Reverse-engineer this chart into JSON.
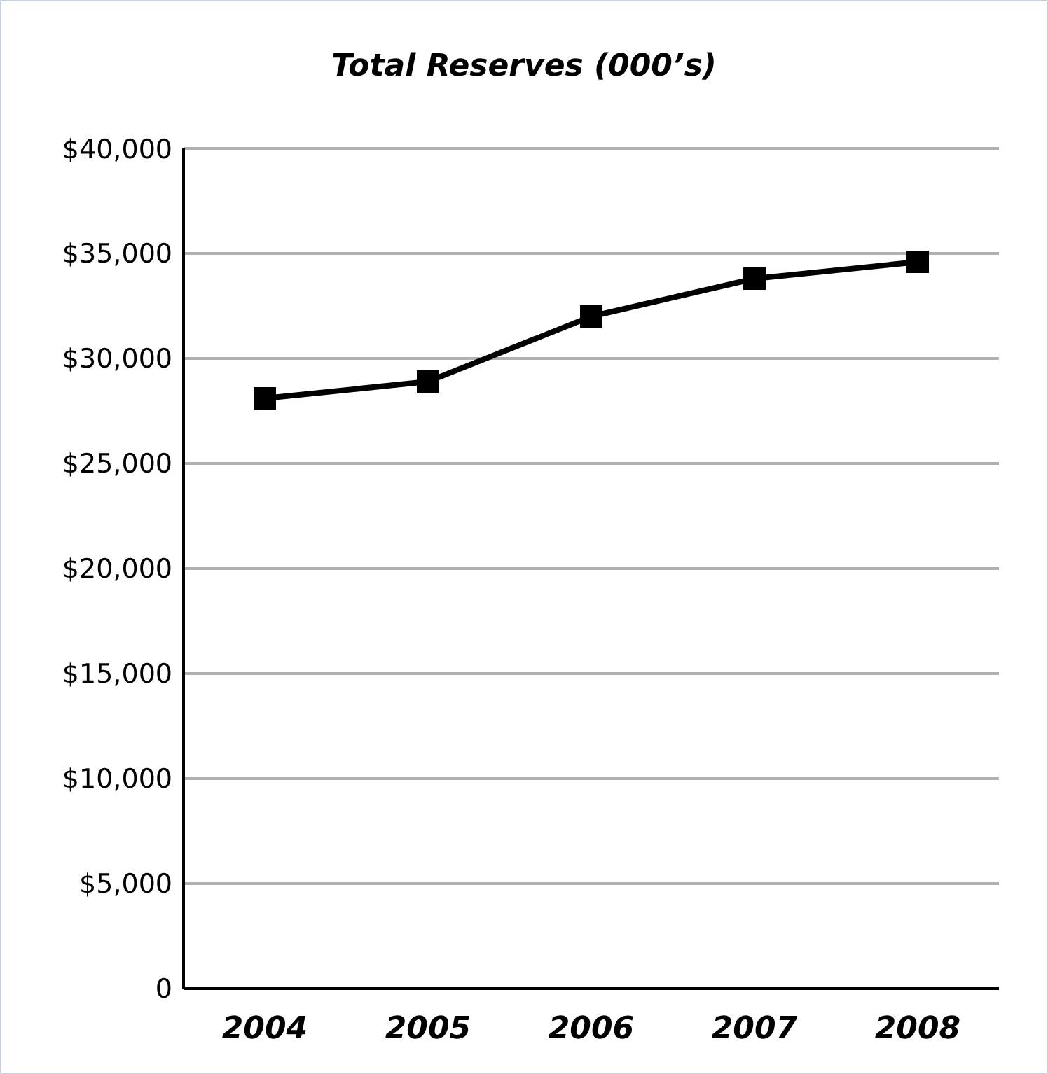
{
  "chart_data": {
    "type": "line",
    "title": "Total Reserves (000’s)",
    "categories": [
      "2004",
      "2005",
      "2006",
      "2007",
      "2008"
    ],
    "series": [
      {
        "color": "#000000",
        "values": [
          28100,
          28900,
          32000,
          33800,
          34600
        ]
      }
    ],
    "ylim": [
      0,
      40000
    ],
    "yticks": [
      {
        "value": 0,
        "label": "0"
      },
      {
        "value": 5000,
        "label": "$5,000"
      },
      {
        "value": 10000,
        "label": "$10,000"
      },
      {
        "value": 15000,
        "label": "$15,000"
      },
      {
        "value": 20000,
        "label": "$20,000"
      },
      {
        "value": 25000,
        "label": "$25,000"
      },
      {
        "value": 30000,
        "label": "$30,000"
      },
      {
        "value": 35000,
        "label": "$35,000"
      },
      {
        "value": 40000,
        "label": "$40,000"
      }
    ],
    "grid": "y",
    "marker": "square",
    "line_style": "solid"
  }
}
